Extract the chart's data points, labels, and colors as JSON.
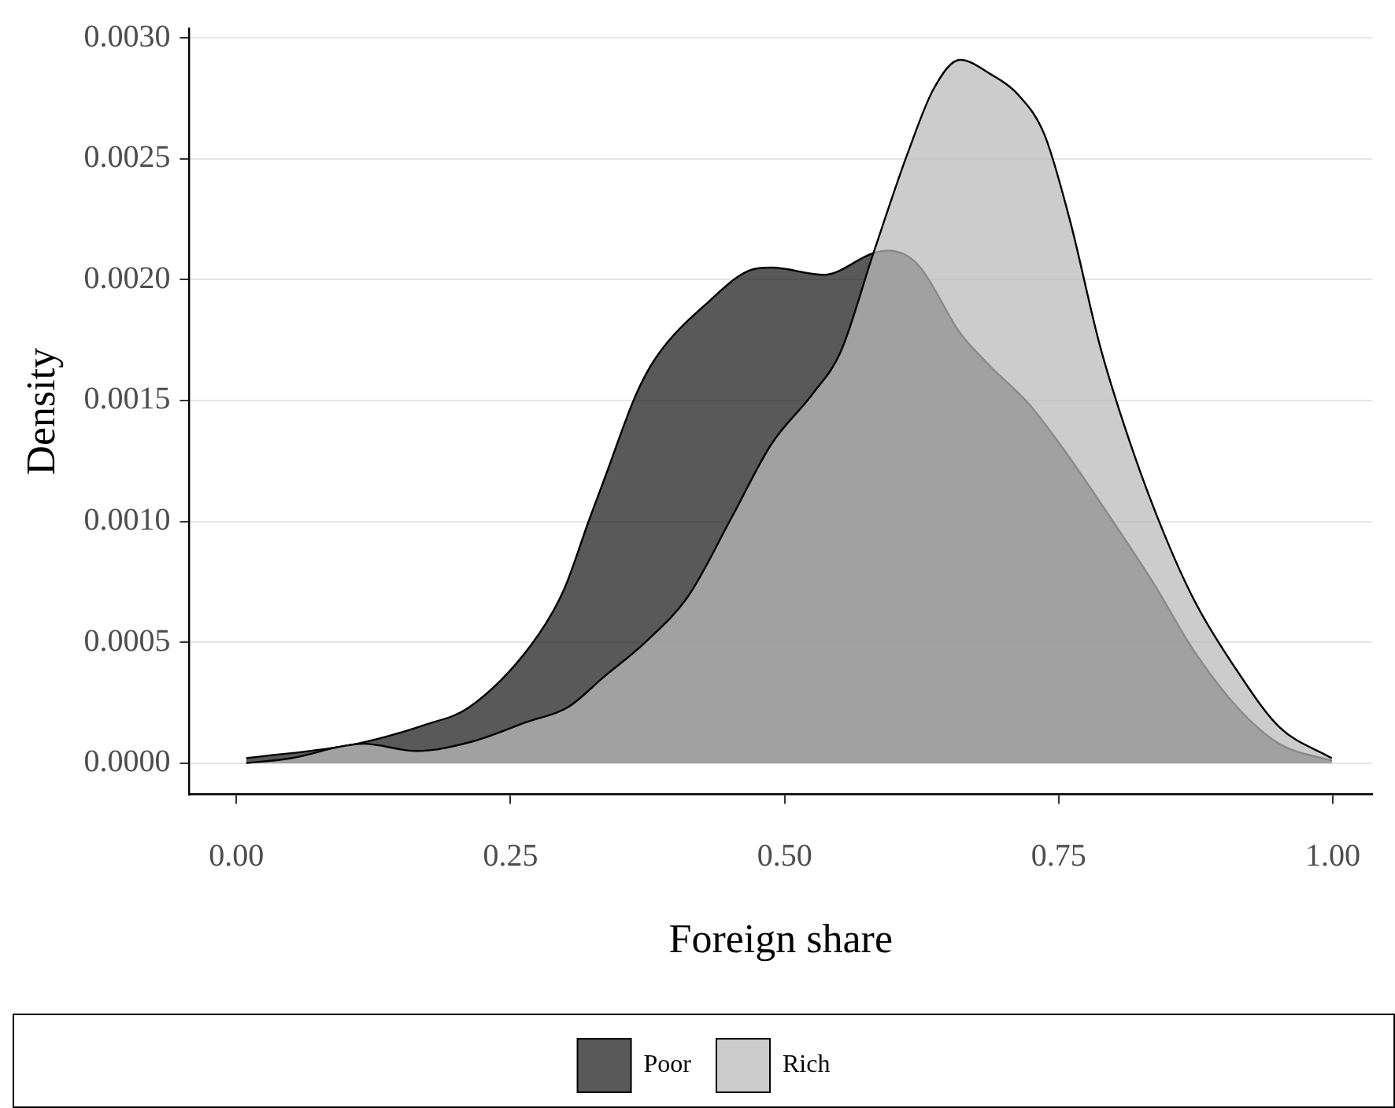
{
  "chart_data": {
    "type": "area",
    "xlabel": "Foreign share",
    "ylabel": "Density",
    "xlim": [
      -0.043,
      1.036
    ],
    "ylim": [
      -0.00013,
      0.00304
    ],
    "xticks": [
      {
        "value": 0,
        "label": "0.00"
      },
      {
        "value": 0.25,
        "label": "0.25"
      },
      {
        "value": 0.5,
        "label": "0.50"
      },
      {
        "value": 0.75,
        "label": "0.75"
      },
      {
        "value": 1,
        "label": "1.00"
      }
    ],
    "yticks": [
      {
        "value": 0,
        "label": "0.0000"
      },
      {
        "value": 0.0005,
        "label": "0.0005"
      },
      {
        "value": 0.001,
        "label": "0.0010"
      },
      {
        "value": 0.0015,
        "label": "0.0015"
      },
      {
        "value": 0.002,
        "label": "0.0020"
      },
      {
        "value": 0.0025,
        "label": "0.0025"
      },
      {
        "value": 0.003,
        "label": "0.0030"
      }
    ],
    "grid": "y",
    "legend": "bottom",
    "series": [
      {
        "name": "Poor",
        "color": "#595959",
        "x": [
          0.009,
          0.11,
          0.173,
          0.212,
          0.269,
          0.298,
          0.322,
          0.336,
          0.365,
          0.383,
          0.431,
          0.469,
          0.488,
          0.536,
          0.581,
          0.595,
          0.622,
          0.66,
          0.688,
          0.722,
          0.751,
          0.798,
          0.837,
          0.874,
          0.913,
          0.951,
          0.999
        ],
        "values": [
          2e-05,
          8e-05,
          0.00016,
          0.00023,
          0.00049,
          0.00071,
          0.00101,
          0.00118,
          0.00153,
          0.00168,
          0.00191,
          0.00204,
          0.00205,
          0.00202,
          0.00211,
          0.00212,
          0.00206,
          0.00178,
          0.00164,
          0.00149,
          0.00132,
          0.00101,
          0.00074,
          0.00046,
          0.00023,
          8e-05,
          1e-05
        ]
      },
      {
        "name": "Rich",
        "color": "#cccccc",
        "x": [
          0.009,
          0.05,
          0.097,
          0.116,
          0.164,
          0.216,
          0.265,
          0.302,
          0.336,
          0.373,
          0.412,
          0.451,
          0.488,
          0.526,
          0.551,
          0.581,
          0.612,
          0.636,
          0.66,
          0.688,
          0.712,
          0.737,
          0.76,
          0.788,
          0.817,
          0.846,
          0.874,
          0.913,
          0.951,
          0.999
        ],
        "values": [
          0.0,
          2e-05,
          7e-05,
          8e-05,
          5e-05,
          9e-05,
          0.00017,
          0.00023,
          0.00036,
          0.0005,
          0.00069,
          0.00101,
          0.00132,
          0.00153,
          0.0017,
          0.00211,
          0.00252,
          0.00279,
          0.00291,
          0.00285,
          0.00277,
          0.0026,
          0.00225,
          0.00172,
          0.0013,
          0.00095,
          0.00067,
          0.00038,
          0.00015,
          2e-05
        ]
      }
    ]
  }
}
